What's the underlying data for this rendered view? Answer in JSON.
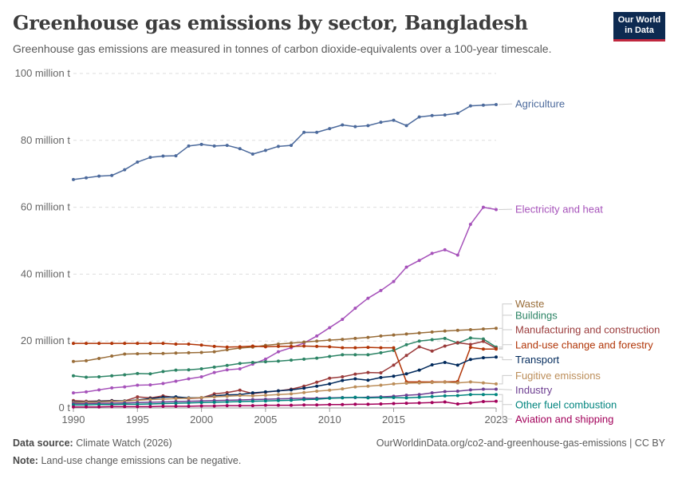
{
  "header": {
    "title": "Greenhouse gas emissions by sector, Bangladesh",
    "subtitle": "Greenhouse gas emissions are measured in tonnes of carbon dioxide-equivalents over a 100-year timescale.",
    "logo_line1": "Our World",
    "logo_line2": "in Data"
  },
  "footer": {
    "source_label": "Data source:",
    "source_text": "Climate Watch (2026)",
    "url": "OurWorldinData.org/co2-and-greenhouse-gas-emissions | CC BY",
    "note_label": "Note:",
    "note_text": "Land-use change emissions can be negative."
  },
  "chart_data": {
    "type": "line",
    "x": [
      1990,
      1991,
      1992,
      1993,
      1994,
      1995,
      1996,
      1997,
      1998,
      1999,
      2000,
      2001,
      2002,
      2003,
      2004,
      2005,
      2006,
      2007,
      2008,
      2009,
      2010,
      2011,
      2012,
      2013,
      2014,
      2015,
      2016,
      2017,
      2018,
      2019,
      2020,
      2021,
      2022,
      2023
    ],
    "xlim": [
      1990,
      2023
    ],
    "ylim": [
      0,
      100
    ],
    "yticks": [
      0,
      20,
      40,
      60,
      80,
      100
    ],
    "ytick_labels": [
      "0 t",
      "20 million t",
      "40 million t",
      "60 million t",
      "80 million t",
      "100 million t"
    ],
    "xticks": [
      1990,
      1995,
      2000,
      2005,
      2010,
      2015,
      2023
    ],
    "xtick_labels": [
      "1990",
      "1995",
      "2000",
      "2005",
      "2010",
      "2015",
      "2023"
    ],
    "grid": true,
    "series": [
      {
        "name": "Agriculture",
        "color": "#4c6a9c",
        "label_y": 90.9,
        "values": [
          68.3,
          68.8,
          69.3,
          69.5,
          71.2,
          73.5,
          74.9,
          75.3,
          75.4,
          78.3,
          78.8,
          78.3,
          78.5,
          77.5,
          75.9,
          77.0,
          78.2,
          78.5,
          82.4,
          82.4,
          83.5,
          84.6,
          84.1,
          84.4,
          85.4,
          86.0,
          84.4,
          87.0,
          87.4,
          87.6,
          88.1,
          90.3,
          90.5,
          90.7
        ]
      },
      {
        "name": "Electricity and heat",
        "color": "#a652ba",
        "label_y": 59.4,
        "values": [
          4.5,
          4.8,
          5.4,
          6.0,
          6.3,
          6.8,
          6.9,
          7.3,
          8.0,
          8.7,
          9.3,
          10.6,
          11.4,
          11.7,
          13.1,
          14.6,
          16.8,
          18.0,
          19.4,
          21.5,
          24.0,
          26.5,
          29.8,
          32.8,
          35.1,
          37.8,
          42.1,
          44.1,
          46.2,
          47.3,
          45.7,
          54.9,
          60.0,
          59.3
        ]
      },
      {
        "name": "Waste",
        "color": "#996d39",
        "label_y": 31.1,
        "values": [
          13.9,
          14.1,
          14.8,
          15.5,
          16.1,
          16.2,
          16.3,
          16.3,
          16.4,
          16.5,
          16.6,
          16.8,
          17.4,
          17.9,
          18.2,
          18.7,
          19.1,
          19.4,
          19.7,
          20.0,
          20.3,
          20.5,
          20.8,
          21.1,
          21.5,
          21.8,
          22.1,
          22.4,
          22.7,
          23.0,
          23.2,
          23.4,
          23.6,
          23.8
        ]
      },
      {
        "name": "Buildings",
        "color": "#2c8465",
        "label_y": 27.7,
        "values": [
          9.6,
          9.2,
          9.3,
          9.6,
          9.9,
          10.3,
          10.2,
          10.9,
          11.3,
          11.4,
          11.7,
          12.2,
          12.7,
          13.3,
          13.6,
          13.8,
          14.0,
          14.3,
          14.6,
          14.9,
          15.4,
          15.9,
          15.9,
          15.9,
          16.5,
          17.2,
          18.9,
          20.0,
          20.4,
          20.8,
          19.4,
          20.9,
          20.6,
          18.2
        ]
      },
      {
        "name": "Manufacturing and construction",
        "color": "#9a3a3a",
        "label_y": 23.4,
        "values": [
          2.2,
          2.0,
          2.1,
          2.2,
          2.1,
          3.3,
          3.0,
          3.6,
          3.1,
          2.8,
          3.0,
          4.2,
          4.6,
          5.3,
          4.3,
          4.7,
          5.1,
          5.6,
          6.5,
          7.7,
          8.9,
          9.3,
          10.1,
          10.6,
          10.5,
          12.8,
          15.7,
          18.3,
          17.0,
          18.5,
          19.5,
          19.0,
          19.9,
          17.8
        ]
      },
      {
        "name": "Land-use change and forestry",
        "color": "#b13507",
        "label_y": 18.9,
        "values": [
          19.3,
          19.3,
          19.3,
          19.3,
          19.3,
          19.3,
          19.3,
          19.3,
          19.1,
          19.1,
          18.8,
          18.4,
          18.2,
          18.3,
          18.5,
          18.3,
          18.4,
          18.4,
          18.5,
          18.4,
          18.3,
          18.0,
          18.0,
          18.1,
          18.0,
          18.0,
          7.8,
          7.8,
          7.8,
          7.8,
          7.9,
          18.1,
          17.6,
          17.6
        ]
      },
      {
        "name": "Transport",
        "color": "#00295b",
        "label_y": 14.4,
        "values": [
          1.8,
          1.8,
          2.0,
          2.1,
          2.1,
          2.4,
          2.8,
          3.2,
          3.3,
          3.0,
          3.1,
          3.6,
          3.9,
          4.0,
          4.5,
          4.8,
          5.1,
          5.4,
          5.9,
          6.5,
          7.2,
          8.2,
          8.7,
          8.3,
          9.1,
          9.5,
          10.2,
          11.3,
          12.9,
          13.6,
          12.8,
          14.5,
          15.0,
          15.2
        ]
      },
      {
        "name": "Fugitive emissions",
        "color": "#bc8e5a",
        "label_y": 9.7,
        "values": [
          1.6,
          1.7,
          1.8,
          1.9,
          2.0,
          2.3,
          2.5,
          2.6,
          2.8,
          2.9,
          3.1,
          3.3,
          3.5,
          3.7,
          3.6,
          3.8,
          4.0,
          4.2,
          4.6,
          5.0,
          5.3,
          5.7,
          6.3,
          6.5,
          6.8,
          7.2,
          7.4,
          7.5,
          7.6,
          7.7,
          7.5,
          7.8,
          7.5,
          7.2
        ]
      },
      {
        "name": "Industry",
        "color": "#6d3e91",
        "label_y": 5.4,
        "values": [
          1.3,
          1.3,
          1.4,
          1.4,
          1.5,
          1.6,
          1.7,
          1.8,
          1.9,
          2.0,
          2.1,
          2.2,
          2.3,
          2.4,
          2.5,
          2.6,
          2.7,
          2.8,
          2.9,
          2.9,
          3.0,
          3.1,
          3.1,
          3.2,
          3.3,
          3.5,
          3.8,
          4.0,
          4.5,
          4.9,
          5.0,
          5.4,
          5.6,
          5.6
        ]
      },
      {
        "name": "Other fuel combustion",
        "color": "#00847e",
        "label_y": 1.0,
        "values": [
          0.9,
          0.9,
          1.0,
          1.0,
          1.1,
          1.1,
          1.2,
          1.3,
          1.4,
          1.5,
          1.6,
          1.7,
          1.8,
          1.9,
          2.0,
          2.1,
          2.2,
          2.3,
          2.5,
          2.6,
          2.9,
          3.0,
          3.2,
          3.0,
          3.1,
          3.1,
          3.0,
          3.2,
          3.4,
          3.6,
          3.7,
          4.0,
          4.0,
          4.0
        ]
      },
      {
        "name": "Aviation and shipping",
        "color": "#a2005a",
        "label_y": -3.3,
        "values": [
          0.3,
          0.3,
          0.3,
          0.4,
          0.4,
          0.4,
          0.4,
          0.5,
          0.5,
          0.5,
          0.6,
          0.6,
          0.7,
          0.7,
          0.7,
          0.8,
          0.8,
          0.8,
          0.9,
          0.9,
          1.0,
          1.0,
          1.1,
          1.1,
          1.2,
          1.3,
          1.4,
          1.5,
          1.6,
          1.8,
          1.2,
          1.5,
          1.9,
          2.0
        ]
      }
    ]
  }
}
